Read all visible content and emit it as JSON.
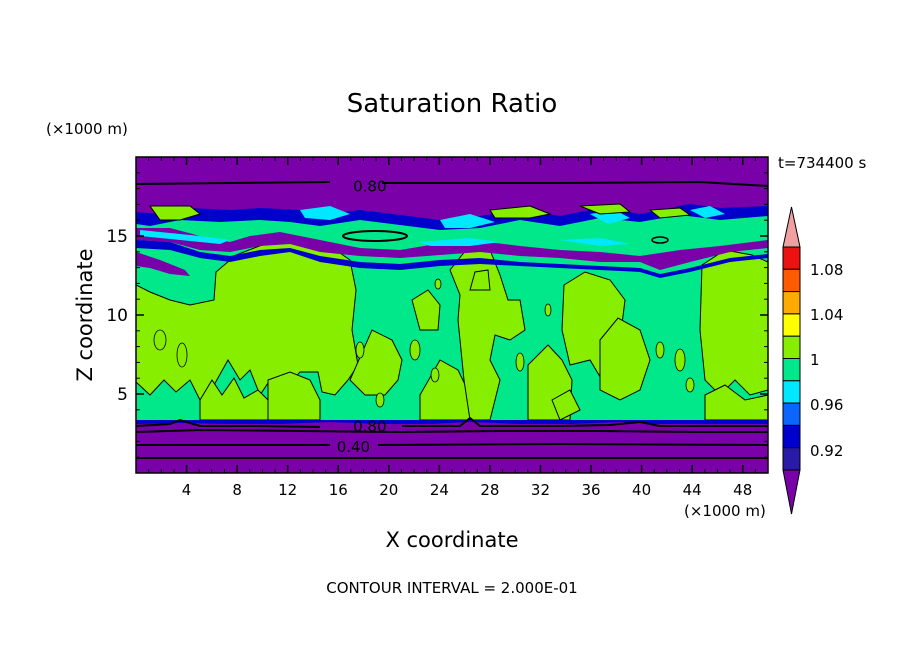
{
  "chart_data": {
    "type": "heatmap",
    "title": "Saturation Ratio",
    "xlabel": "X coordinate",
    "ylabel": "Z coordinate",
    "x_units": "(×1000 m)",
    "y_units": "(×1000 m)",
    "time_label": "t=734400 s",
    "footer": "CONTOUR INTERVAL = 2.000E-01",
    "xlim": [
      0,
      50
    ],
    "ylim": [
      0,
      20
    ],
    "x_ticks": [
      4,
      8,
      12,
      16,
      20,
      24,
      28,
      32,
      36,
      40,
      44,
      48
    ],
    "y_ticks": [
      5,
      10,
      15
    ],
    "colorbar": {
      "labels": [
        "1.08",
        "1.04",
        "1",
        "0.96",
        "0.92"
      ],
      "levels": [
        0.92,
        0.94,
        0.96,
        0.98,
        1.0,
        1.02,
        1.04,
        1.06,
        1.08,
        1.1
      ],
      "colors": [
        "#7a00aa",
        "#2a1aa8",
        "#0000cc",
        "#0a66ff",
        "#00e8ff",
        "#00e88a",
        "#88ee00",
        "#ffff00",
        "#ffaa00",
        "#ff5a00",
        "#ee1111",
        "#f0a0a0"
      ],
      "arrow_low": "#7a00aa",
      "arrow_high": "#f0a0a0"
    },
    "contour_labels": [
      {
        "text": "0.80",
        "x": 18.5,
        "z": 18.2
      },
      {
        "text": "0.80",
        "x": 18.5,
        "z": 3.0
      },
      {
        "text": "0.40",
        "x": 17.2,
        "z": 1.7
      }
    ],
    "layers": [
      {
        "name": "",
        "from_z": 0.0,
        "to_z": 3.4,
        "value": 0.5
      },
      {
        "name": "",
        "from_z": 3.4,
        "to_z": 13.5,
        "value": 0.99
      },
      {
        "name": "",
        "from_z": 13.5,
        "to_z": 17.5,
        "value": 0.97
      },
      {
        "name": "",
        "from_z": 17.5,
        "to_z": 20.0,
        "value": 0.85
      }
    ]
  }
}
